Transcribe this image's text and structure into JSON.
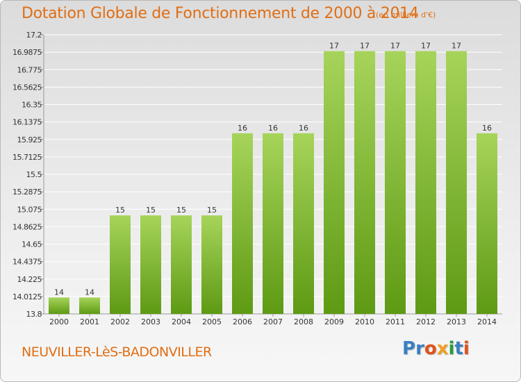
{
  "header": {
    "title": "Dotation Globale de Fonctionnement de 2000 à 2014",
    "subtitle": "(en milliers d'€)"
  },
  "footer": {
    "town": "NEUVILLER-LèS-BADONVILLER",
    "logo_letters": [
      "P",
      "r",
      "o",
      "x",
      "i",
      "t",
      "i"
    ],
    "logo_colors": [
      "#3a7fc4",
      "#3a7fc4",
      "#e0521a",
      "#f0a020",
      "#2a9a3a",
      "#3a7fc4",
      "#e0521a"
    ]
  },
  "colors": {
    "bar_top": "#a6d45a",
    "bar_bottom": "#5e9a14",
    "grid": "#ffffff",
    "axis_text": "#333333"
  },
  "chart_data": {
    "type": "bar",
    "title": "Dotation Globale de Fonctionnement de 2000 à 2014",
    "subtitle": "(en milliers d'€)",
    "categories": [
      "2000",
      "2001",
      "2002",
      "2003",
      "2004",
      "2005",
      "2006",
      "2007",
      "2008",
      "2009",
      "2010",
      "2011",
      "2012",
      "2013",
      "2014"
    ],
    "values": [
      14,
      14,
      15,
      15,
      15,
      15,
      16,
      16,
      16,
      17,
      17,
      17,
      17,
      17,
      16
    ],
    "data_labels": [
      "14",
      "14",
      "15",
      "15",
      "15",
      "15",
      "16",
      "16",
      "16",
      "17",
      "17",
      "17",
      "17",
      "17",
      "16"
    ],
    "y_ticks": [
      "13.8",
      "14.0125",
      "14.225",
      "14.4375",
      "14.65",
      "14.8625",
      "15.075",
      "15.2875",
      "15.5",
      "15.7125",
      "15.925",
      "16.1375",
      "16.35",
      "16.5625",
      "16.775",
      "16.9875",
      "17.2"
    ],
    "ylim": [
      13.8,
      17.2
    ],
    "grid": true,
    "legend": "none",
    "xlabel": "",
    "ylabel": ""
  }
}
